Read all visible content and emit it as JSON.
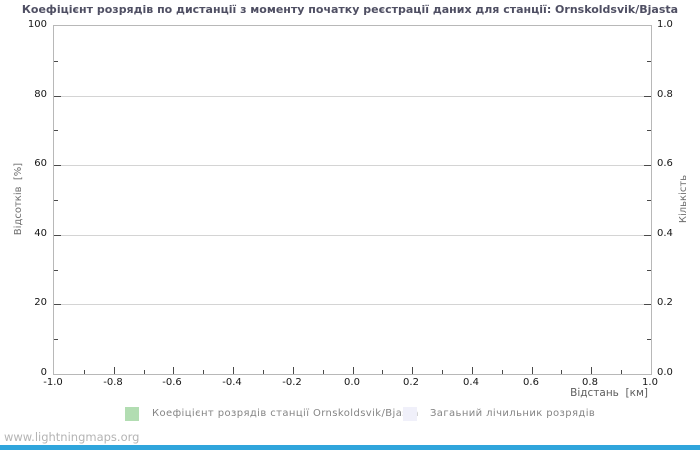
{
  "chart_data": {
    "type": "bar",
    "title": "Коефіцієнт розрядів по дистанції з моменту початку реєстрації даних для станції: Ornskoldsvik/Bjasta",
    "xlabel": "Відстань  [км]",
    "ylabel_left": "Відсотків  [%]",
    "ylabel_right": "Кількість",
    "xlim": [
      -1.0,
      1.0
    ],
    "ylim_left": [
      0,
      100
    ],
    "ylim_right": [
      0.0,
      1.0
    ],
    "x_tick_labels": [
      "-1.0",
      "-0.8",
      "-0.6",
      "-0.4",
      "-0.2",
      "0.0",
      "0.2",
      "0.4",
      "0.6",
      "0.8",
      "1.0"
    ],
    "y_tick_labels_left": [
      "0",
      "20",
      "40",
      "60",
      "80",
      "100"
    ],
    "y_tick_labels_right": [
      "0.0",
      "0.2",
      "0.4",
      "0.6",
      "0.8",
      "1.0"
    ],
    "grid": "horizontal-only",
    "legend_position": "bottom",
    "series": [
      {
        "name": "Коефіцієнт розрядів станції Ornskoldsvik/Bjasta",
        "color": "#b2ddb2",
        "values": []
      },
      {
        "name": "Загаьний лічильник розрядів",
        "color": "#f0f0fa",
        "values": []
      }
    ]
  },
  "footer": {
    "watermark": "www.lightningmaps.org"
  },
  "colors": {
    "title": "#4f4f63",
    "frame": "#b8b8b8",
    "grid": "#d4d4d4",
    "legend_text": "#848484",
    "watermark": "#b4b4b4",
    "bottom_bar": "#2fa5dc",
    "background": "#ffffff"
  }
}
